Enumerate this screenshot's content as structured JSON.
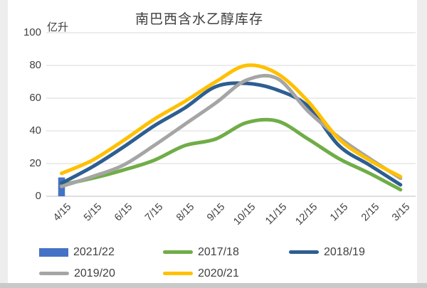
{
  "page": {
    "background": "#ffffff",
    "edge_color": "#ededed",
    "bottom_edge_color": "#c9c9c9"
  },
  "colors": {
    "grid": "#d9d9d9",
    "axis": "#bfbfbf",
    "text": "#404040"
  },
  "chart_data": {
    "type": "line",
    "title": "南巴西含水乙醇库存",
    "unit_label": "亿升",
    "categories": [
      "4/15",
      "5/15",
      "6/15",
      "7/15",
      "8/15",
      "9/15",
      "10/15",
      "11/15",
      "12/15",
      "1/15",
      "2/15",
      "3/15"
    ],
    "y_ticks": [
      0,
      20,
      40,
      60,
      80,
      100
    ],
    "ylim": [
      0,
      100
    ],
    "grid": true,
    "legend_position": "bottom",
    "series": [
      {
        "name": "2021/22",
        "type": "bar",
        "color": "#4472c4",
        "values": [
          11.5,
          null,
          null,
          null,
          null,
          null,
          null,
          null,
          null,
          null,
          null,
          null
        ]
      },
      {
        "name": "2017/18",
        "type": "line",
        "color": "#70ad47",
        "values": [
          7,
          11,
          16,
          22,
          31,
          35,
          45,
          46,
          35,
          23,
          14,
          4
        ]
      },
      {
        "name": "2018/19",
        "type": "line",
        "color": "#2e5e91",
        "values": [
          8,
          18,
          30,
          43,
          54,
          67,
          69,
          65,
          55,
          31,
          19,
          7
        ]
      },
      {
        "name": "2019/20",
        "type": "line",
        "color": "#a5a5a5",
        "values": [
          6,
          12,
          19,
          31,
          44,
          57,
          71,
          72,
          52,
          36,
          23,
          11
        ]
      },
      {
        "name": "2020/21",
        "type": "line",
        "color": "#ffc000",
        "values": [
          14,
          22,
          34,
          47,
          58,
          70,
          80,
          75,
          58,
          35,
          22,
          12
        ]
      }
    ]
  }
}
